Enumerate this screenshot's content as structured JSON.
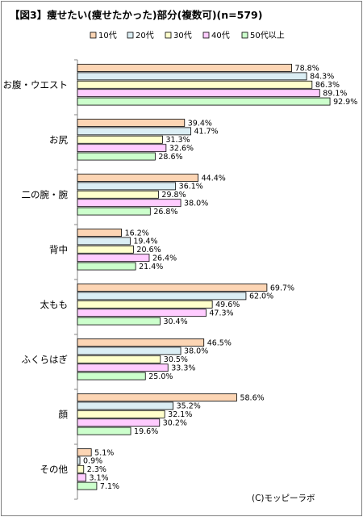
{
  "chart_data": {
    "type": "bar",
    "orientation": "horizontal",
    "title": "【図3】痩せたい(痩せたかった)部分(複数可)(n=579)",
    "credit": "(C)モッピーラボ",
    "unit": "%",
    "categories": [
      "お腹・ウエスト",
      "お尻",
      "二の腕・腕",
      "背中",
      "太もも",
      "ふくらはぎ",
      "顔",
      "その他"
    ],
    "series": [
      {
        "name": "10代",
        "color": "#fcd5b4",
        "values": [
          78.8,
          39.4,
          44.4,
          16.2,
          69.7,
          46.5,
          58.6,
          5.1
        ]
      },
      {
        "name": "20代",
        "color": "#dbeef4",
        "values": [
          84.3,
          41.7,
          36.1,
          19.4,
          62.0,
          38.0,
          35.2,
          0.9
        ]
      },
      {
        "name": "30代",
        "color": "#ffffcc",
        "values": [
          86.3,
          31.3,
          29.8,
          20.6,
          49.6,
          30.5,
          32.1,
          2.3
        ]
      },
      {
        "name": "40代",
        "color": "#ffccff",
        "values": [
          89.1,
          32.6,
          38.0,
          26.4,
          47.3,
          33.3,
          30.2,
          3.1
        ]
      },
      {
        "name": "50代以上",
        "color": "#ccffcc",
        "values": [
          92.9,
          28.6,
          26.8,
          21.4,
          30.4,
          25.0,
          19.6,
          7.1
        ]
      }
    ],
    "xlim": [
      0,
      100
    ],
    "legend_position": "top",
    "grid": false
  }
}
